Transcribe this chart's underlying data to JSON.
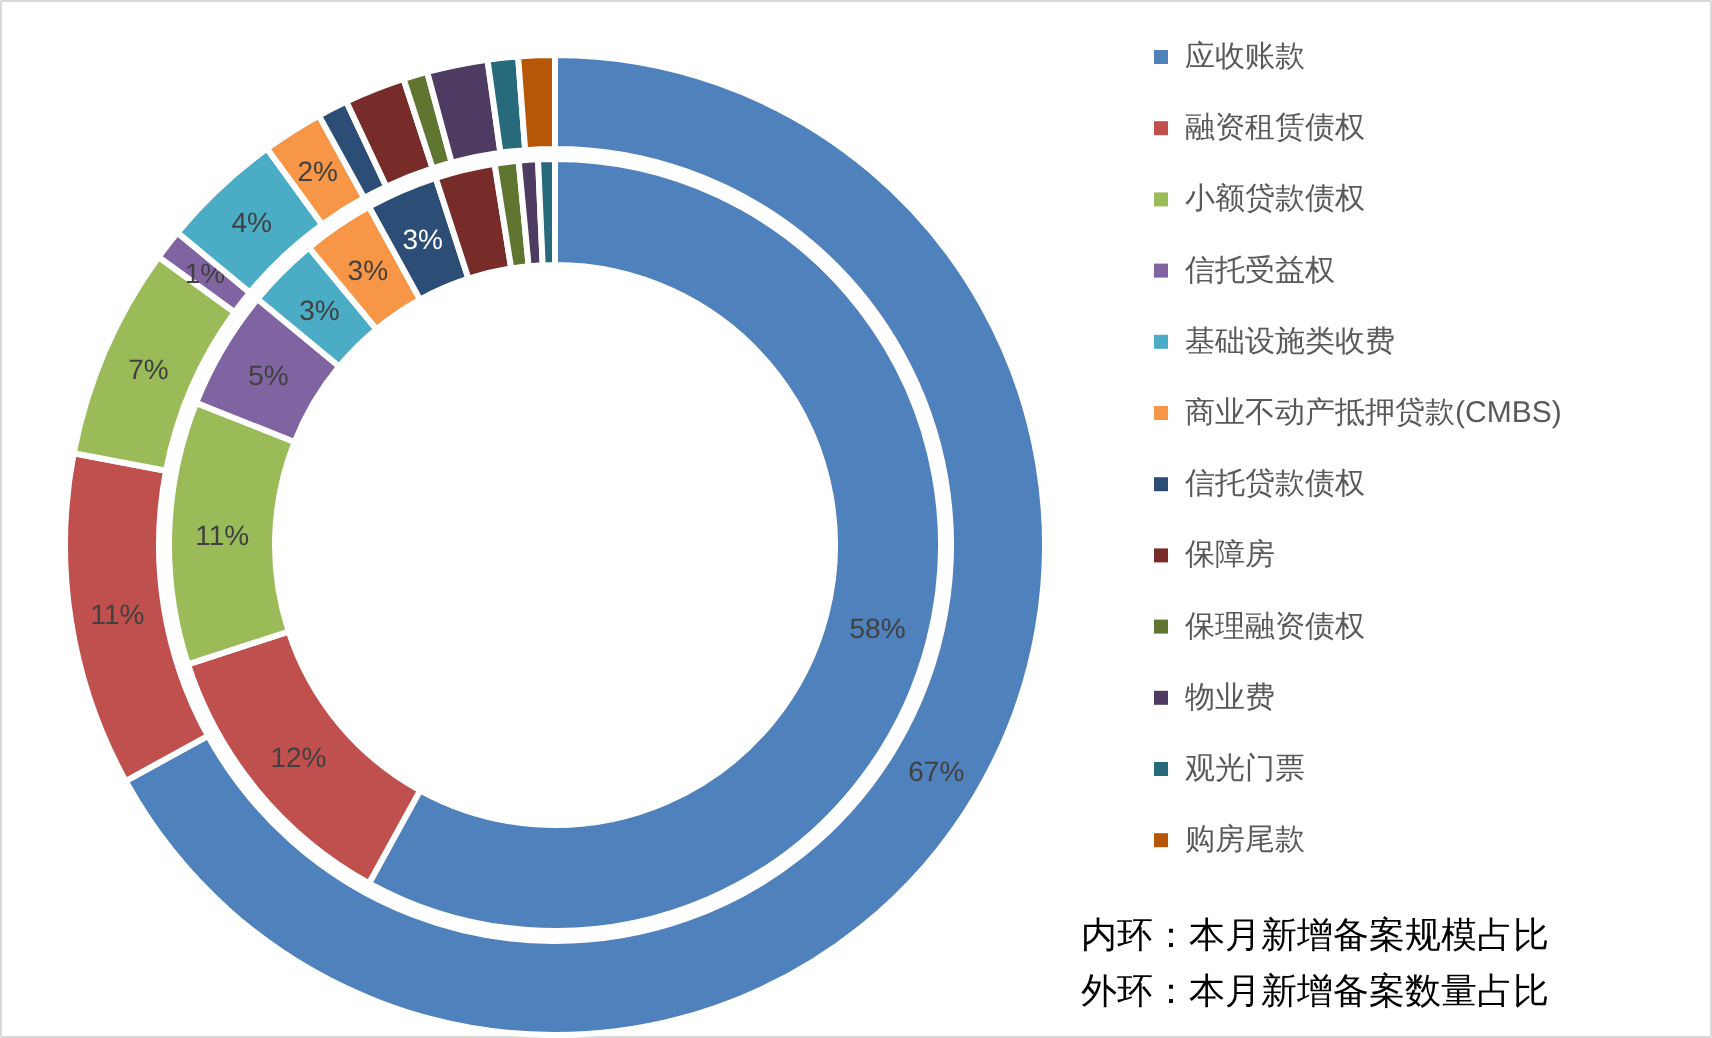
{
  "chart_data": {
    "type": "donut",
    "categories": [
      "应收账款",
      "融资租赁债权",
      "小额贷款债权",
      "信托受益权",
      "基础设施类收费",
      "商业不动产抵押贷款(CMBS)",
      "信托贷款债权",
      "保障房",
      "保理融资债权",
      "物业费",
      "观光门票",
      "购房尾款"
    ],
    "colors": [
      "#4f81bd",
      "#c0504d",
      "#9bbb59",
      "#8064a2",
      "#4bacc6",
      "#f79646",
      "#2c4d75",
      "#772c2a",
      "#5f7530",
      "#4d3b62",
      "#276a7c",
      "#b65708"
    ],
    "series": [
      {
        "values": [
          58,
          12,
          11,
          5,
          3,
          3,
          3,
          2.5,
          1,
          0.8,
          0.7,
          null
        ],
        "value_labels": [
          "58%",
          "12%",
          "11%",
          "5%",
          "3%",
          "3%",
          "3%",
          null,
          null,
          null,
          null,
          null
        ]
      },
      {
        "values": [
          67,
          11,
          7,
          1,
          4,
          2,
          1,
          2,
          0.8,
          2,
          1,
          1.2
        ],
        "value_labels": [
          "67%",
          "11%",
          "7%",
          "1%",
          "4%",
          "2%",
          null,
          null,
          null,
          null,
          null,
          null
        ]
      }
    ],
    "legend": "right",
    "annotations": [
      "内环：本月新增备案规模占比",
      "外环：本月新增备案数量占比"
    ]
  }
}
